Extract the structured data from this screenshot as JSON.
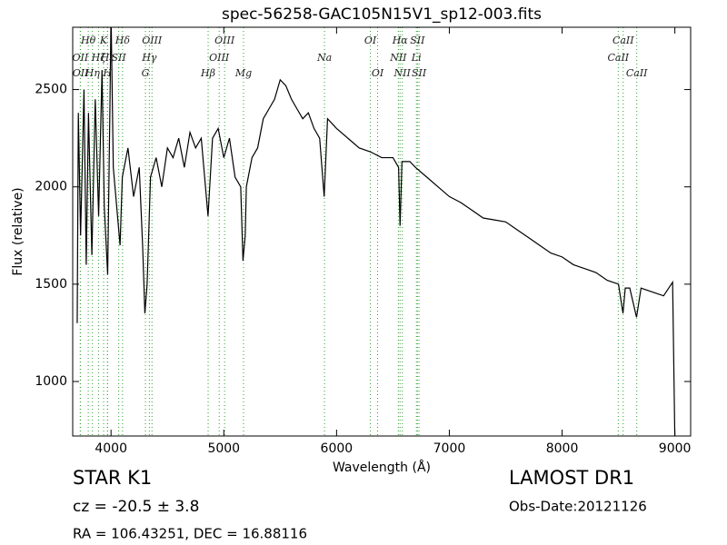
{
  "chart_data": {
    "type": "line",
    "title": "spec-56258-GAC105N15V1_sp12-003.fits",
    "x_label": "Wavelength (Å)",
    "y_label": "Flux (relative)",
    "xlim": [
      3660,
      9140
    ],
    "ylim": [
      720,
      2820
    ],
    "xticks": [
      4000,
      5000,
      6000,
      7000,
      8000,
      9000
    ],
    "yticks": [
      1000,
      1500,
      2000,
      2500
    ],
    "color": "#000000",
    "line_color": "#2ca02c",
    "x": [
      3700,
      3710,
      3730,
      3760,
      3780,
      3800,
      3830,
      3860,
      3890,
      3920,
      3940,
      3970,
      3990,
      4000,
      4020,
      4050,
      4080,
      4100,
      4150,
      4200,
      4250,
      4280,
      4300,
      4320,
      4350,
      4400,
      4450,
      4500,
      4550,
      4600,
      4650,
      4700,
      4750,
      4800,
      4860,
      4900,
      4950,
      5000,
      5050,
      5100,
      5150,
      5170,
      5190,
      5200,
      5250,
      5300,
      5350,
      5400,
      5450,
      5500,
      5550,
      5600,
      5650,
      5700,
      5750,
      5800,
      5850,
      5890,
      5920,
      6000,
      6100,
      6200,
      6300,
      6400,
      6500,
      6550,
      6563,
      6580,
      6650,
      6700,
      6800,
      6900,
      7000,
      7100,
      7200,
      7300,
      7400,
      7500,
      7600,
      7700,
      7800,
      7900,
      8000,
      8100,
      8200,
      8300,
      8400,
      8500,
      8540,
      8560,
      8600,
      8660,
      8700,
      8800,
      8900,
      8980,
      9000
    ],
    "values": [
      1300,
      2380,
      1750,
      2500,
      1600,
      2380,
      1650,
      2450,
      1850,
      2600,
      1900,
      1550,
      2400,
      2900,
      2100,
      1900,
      1700,
      2050,
      2200,
      1950,
      2100,
      1700,
      1350,
      1500,
      2050,
      2150,
      2000,
      2200,
      2150,
      2250,
      2100,
      2280,
      2200,
      2250,
      1850,
      2250,
      2300,
      2150,
      2250,
      2050,
      2000,
      1620,
      1750,
      2000,
      2150,
      2200,
      2350,
      2400,
      2450,
      2550,
      2520,
      2450,
      2400,
      2350,
      2380,
      2300,
      2250,
      1950,
      2350,
      2300,
      2250,
      2200,
      2180,
      2150,
      2150,
      2100,
      1800,
      2130,
      2130,
      2100,
      2050,
      2000,
      1950,
      1920,
      1880,
      1840,
      1830,
      1820,
      1780,
      1740,
      1700,
      1660,
      1640,
      1600,
      1580,
      1560,
      1520,
      1500,
      1350,
      1480,
      1480,
      1330,
      1480,
      1460,
      1440,
      1510,
      700
    ],
    "lines": [
      {
        "label": "Hθ",
        "x": 3798,
        "row": 0
      },
      {
        "label": "K",
        "x": 3934,
        "row": 0
      },
      {
        "label": "Hδ",
        "x": 4102,
        "row": 0
      },
      {
        "label": "OIII",
        "x": 4363,
        "row": 0
      },
      {
        "label": "OIII",
        "x": 5007,
        "row": 0
      },
      {
        "label": "OI",
        "x": 6300,
        "row": 0
      },
      {
        "label": "Hα",
        "x": 6563,
        "row": 0
      },
      {
        "label": "SII",
        "x": 6717,
        "row": 0
      },
      {
        "label": "CaII",
        "x": 8542,
        "row": 0
      },
      {
        "label": "OII",
        "x": 3727,
        "row": 1
      },
      {
        "label": "Hζ",
        "x": 3889,
        "row": 1
      },
      {
        "label": "Hε",
        "x": 3970,
        "row": 1
      },
      {
        "label": "SII",
        "x": 4068,
        "row": 1
      },
      {
        "label": "Hγ",
        "x": 4340,
        "row": 1
      },
      {
        "label": "OIII",
        "x": 4959,
        "row": 1
      },
      {
        "label": "Na",
        "x": 5893,
        "row": 1
      },
      {
        "label": "NII",
        "x": 6548,
        "row": 1
      },
      {
        "label": "Li",
        "x": 6708,
        "row": 1
      },
      {
        "label": "CaII",
        "x": 8498,
        "row": 1
      },
      {
        "label": "OII",
        "x": 3729,
        "row": 2
      },
      {
        "label": "Hη",
        "x": 3835,
        "row": 2
      },
      {
        "label": "H",
        "x": 3968,
        "row": 2
      },
      {
        "label": "G",
        "x": 4305,
        "row": 2
      },
      {
        "label": "Hβ",
        "x": 4861,
        "row": 2
      },
      {
        "label": "Mg",
        "x": 5175,
        "row": 2
      },
      {
        "label": "OI",
        "x": 6364,
        "row": 2
      },
      {
        "label": "NII",
        "x": 6583,
        "row": 2
      },
      {
        "label": "SII",
        "x": 6731,
        "row": 2
      },
      {
        "label": "CaII",
        "x": 8662,
        "row": 2
      }
    ],
    "object_class": "STAR   K1",
    "redshift": "cz = -20.5 ± 3.8",
    "coordinates": "RA = 106.43251, DEC = 16.88116",
    "survey": "LAMOST DR1",
    "obs_date": "Obs-Date:20121126"
  }
}
